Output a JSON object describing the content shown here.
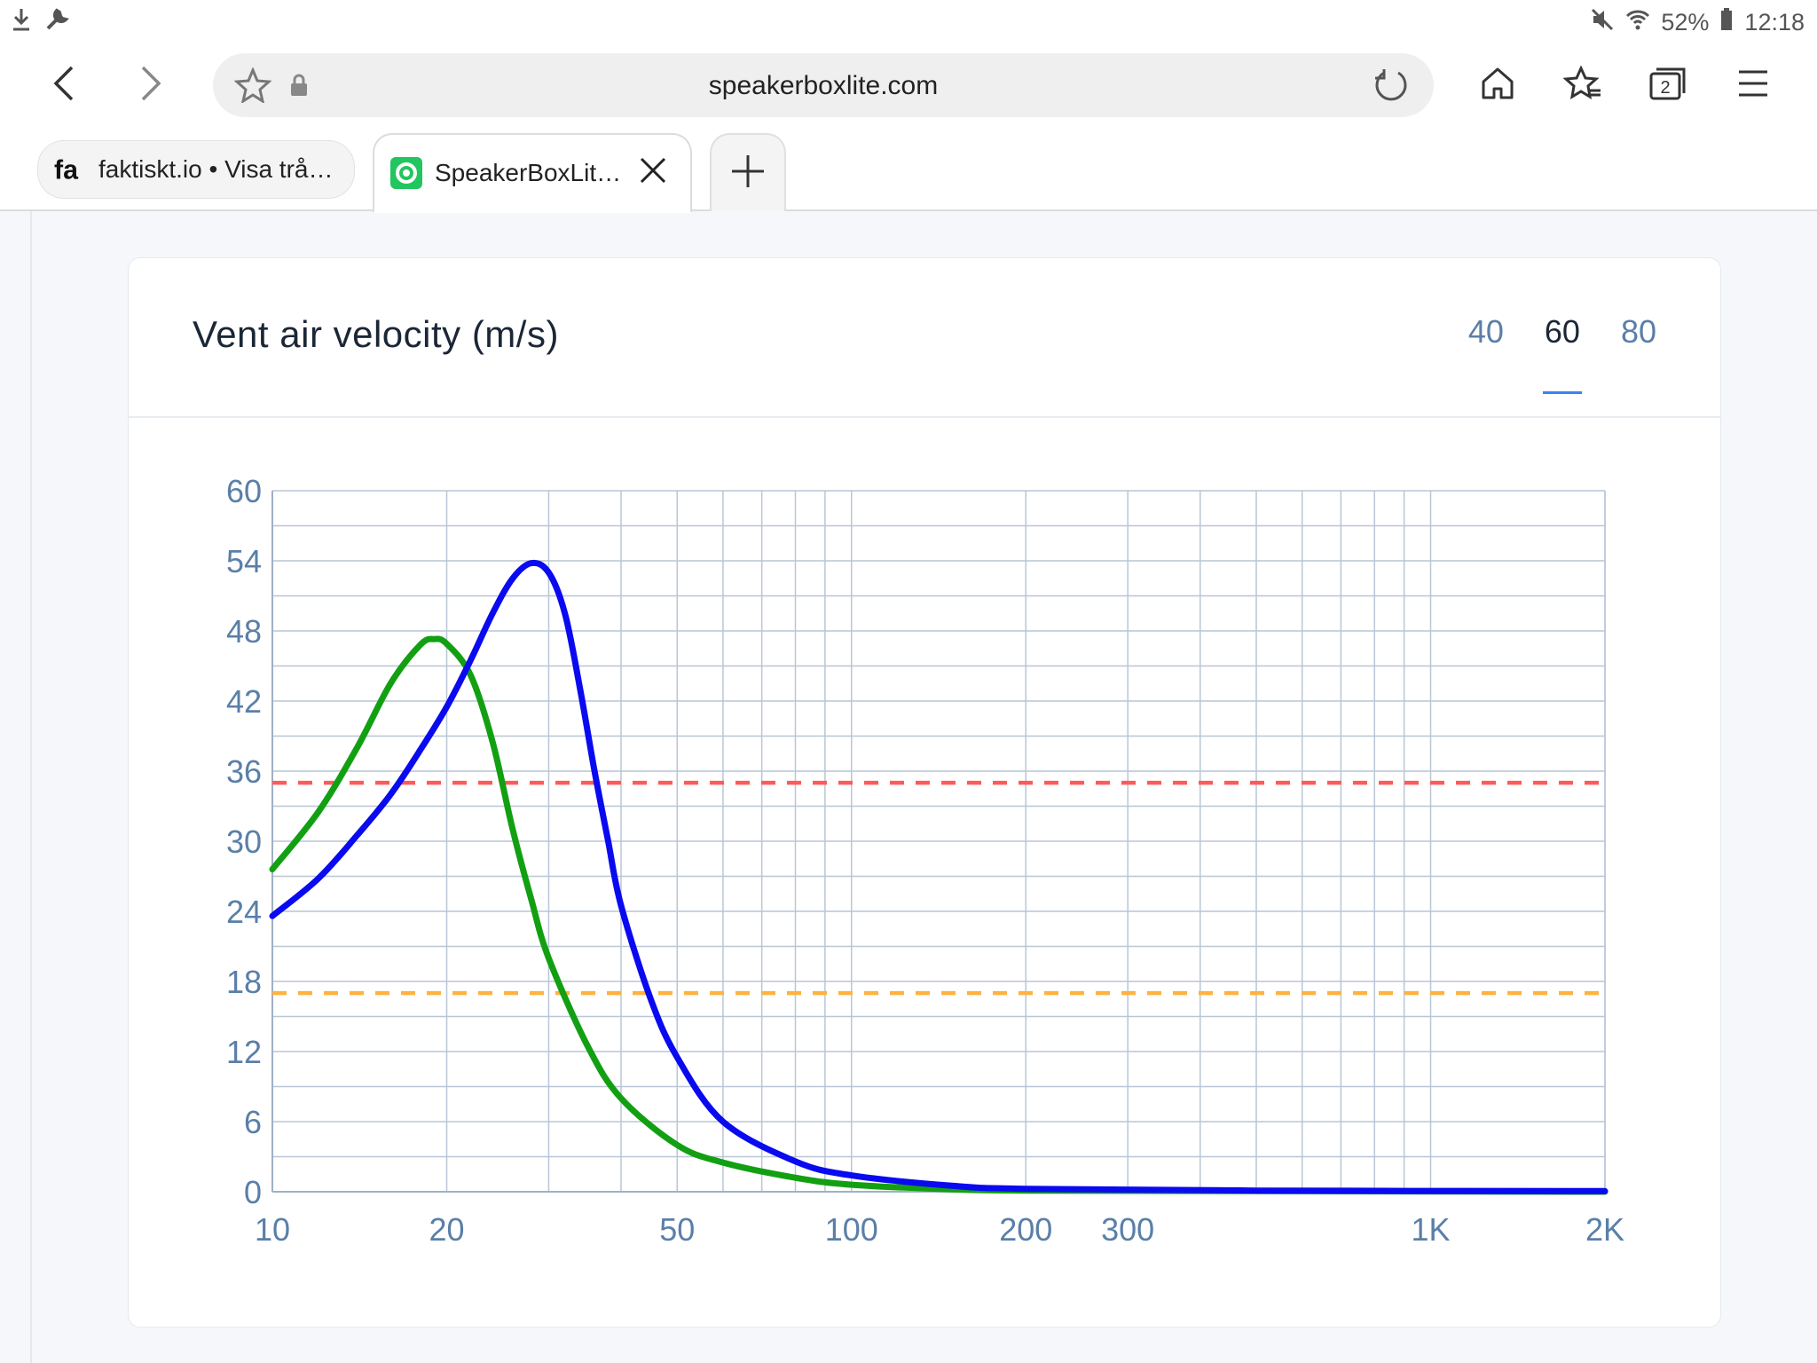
{
  "status_bar": {
    "battery": "52%",
    "time": "12:18"
  },
  "browser": {
    "url": "speakerboxlite.com",
    "tabs": [
      {
        "favicon": "fa",
        "title": "faktiskt.io • Visa trå…"
      },
      {
        "title": "SpeakerBoxLit…"
      }
    ],
    "tab_count": "2"
  },
  "card": {
    "title": "Vent air velocity (m/s)",
    "ranges": [
      "40",
      "60",
      "80"
    ],
    "active_range": "60"
  },
  "chart_data": {
    "type": "line",
    "title": "Vent air velocity (m/s)",
    "xscale": "log",
    "xlim": [
      10,
      2000
    ],
    "ylim": [
      0,
      60
    ],
    "x_ticks": [
      10,
      20,
      50,
      100,
      200,
      300,
      1000,
      2000
    ],
    "x_tick_labels": [
      "10",
      "20",
      "50",
      "100",
      "200",
      "300",
      "1K",
      "2K"
    ],
    "y_ticks": [
      0,
      6,
      12,
      18,
      24,
      30,
      36,
      42,
      48,
      54,
      60
    ],
    "y_tick_labels": [
      "0",
      "6",
      "12",
      "18",
      "24",
      "30",
      "36",
      "42",
      "48",
      "54",
      "60"
    ],
    "grid": true,
    "series": [
      {
        "color": "#12a012",
        "points": [
          [
            10,
            27.6
          ],
          [
            12,
            32.5
          ],
          [
            14,
            38.0
          ],
          [
            16,
            43.5
          ],
          [
            18,
            46.8
          ],
          [
            19,
            47.3
          ],
          [
            20,
            46.9
          ],
          [
            22,
            44.2
          ],
          [
            24,
            38.5
          ],
          [
            26,
            31.0
          ],
          [
            28,
            25.0
          ],
          [
            30,
            20.0
          ],
          [
            35,
            12.5
          ],
          [
            40,
            8.0
          ],
          [
            50,
            4.0
          ],
          [
            60,
            2.5
          ],
          [
            80,
            1.2
          ],
          [
            100,
            0.6
          ],
          [
            150,
            0.2
          ],
          [
            200,
            0.1
          ],
          [
            500,
            0.05
          ],
          [
            2000,
            0.0
          ]
        ]
      },
      {
        "color": "#0a0af0",
        "points": [
          [
            10,
            23.6
          ],
          [
            12,
            26.8
          ],
          [
            14,
            30.5
          ],
          [
            16,
            34.0
          ],
          [
            18,
            37.8
          ],
          [
            20,
            41.5
          ],
          [
            22,
            45.5
          ],
          [
            24,
            49.5
          ],
          [
            26,
            52.5
          ],
          [
            28,
            53.8
          ],
          [
            30,
            53.0
          ],
          [
            32,
            49.5
          ],
          [
            34,
            43.0
          ],
          [
            36,
            36.0
          ],
          [
            38,
            30.0
          ],
          [
            40,
            24.5
          ],
          [
            45,
            16.5
          ],
          [
            50,
            11.5
          ],
          [
            60,
            6.0
          ],
          [
            80,
            2.6
          ],
          [
            100,
            1.4
          ],
          [
            150,
            0.5
          ],
          [
            200,
            0.25
          ],
          [
            500,
            0.1
          ],
          [
            2000,
            0.05
          ]
        ]
      }
    ],
    "reference_lines": [
      {
        "y": 35,
        "color": "#ff5a5a",
        "style": "dashed"
      },
      {
        "y": 17,
        "color": "#ffb23e",
        "style": "dashed"
      }
    ]
  }
}
